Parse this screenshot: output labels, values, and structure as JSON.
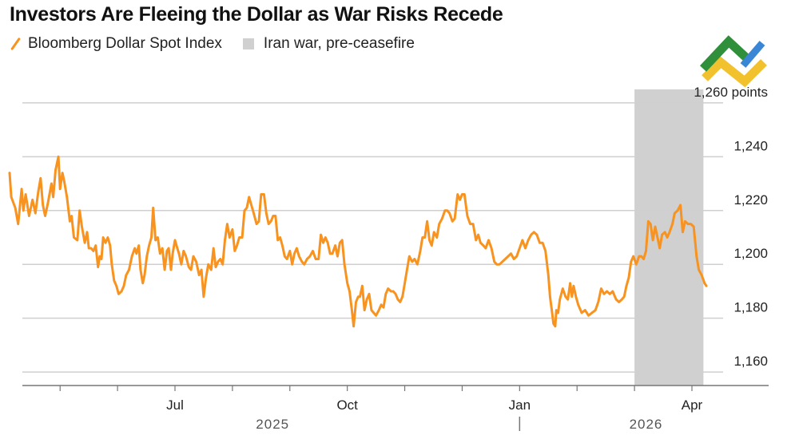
{
  "title": "Investors Are Fleeing the Dollar as War Risks Recede",
  "legend": {
    "series_label": "Bloomberg Dollar Spot Index",
    "shade_label": "Iran war, pre-ceasefire"
  },
  "colors": {
    "line": "#f7931e",
    "shade": "#d0d0d0",
    "grid": "#cfcfcf",
    "axis": "#777777"
  },
  "chart_data": {
    "type": "line",
    "title": "Investors Are Fleeing the Dollar as War Risks Recede",
    "xlabel": "",
    "ylabel": "points",
    "ylim": [
      1155,
      1265
    ],
    "y_ticks": [
      {
        "value": 1260,
        "label": "1,260 points"
      },
      {
        "value": 1240,
        "label": "1,240"
      },
      {
        "value": 1220,
        "label": "1,220"
      },
      {
        "value": 1200,
        "label": "1,200"
      },
      {
        "value": 1180,
        "label": "1,180"
      },
      {
        "value": 1160,
        "label": "1,160"
      }
    ],
    "x_ticks": [
      {
        "month": 5,
        "label": ""
      },
      {
        "month": 6,
        "label": ""
      },
      {
        "month": 7,
        "label": "Jul"
      },
      {
        "month": 8,
        "label": ""
      },
      {
        "month": 9,
        "label": ""
      },
      {
        "month": 10,
        "label": "Oct"
      },
      {
        "month": 11,
        "label": ""
      },
      {
        "month": 12,
        "label": ""
      },
      {
        "month": 13,
        "label": "Jan"
      },
      {
        "month": 14,
        "label": ""
      },
      {
        "month": 15,
        "label": ""
      },
      {
        "month": 16,
        "label": "Apr"
      }
    ],
    "year_labels": [
      {
        "month": 8.7,
        "label": "2025"
      },
      {
        "month": 15.2,
        "label": "2026"
      }
    ],
    "year_separator_month": 13.0,
    "xlim": [
      4.0,
      17.3
    ],
    "shaded_region": {
      "start_month": 15.0,
      "end_month": 16.2,
      "label": "Iran war, pre-ceasefire"
    },
    "series": [
      {
        "name": "Bloomberg Dollar Spot Index",
        "points": [
          [
            4.12,
            1234
          ],
          [
            4.15,
            1225
          ],
          [
            4.22,
            1221
          ],
          [
            4.27,
            1215
          ],
          [
            4.33,
            1228
          ],
          [
            4.36,
            1220
          ],
          [
            4.4,
            1226
          ],
          [
            4.46,
            1218
          ],
          [
            4.52,
            1224
          ],
          [
            4.57,
            1219
          ],
          [
            4.62,
            1227
          ],
          [
            4.66,
            1232
          ],
          [
            4.7,
            1222
          ],
          [
            4.74,
            1218
          ],
          [
            4.79,
            1223
          ],
          [
            4.85,
            1230
          ],
          [
            4.88,
            1225
          ],
          [
            4.92,
            1235
          ],
          [
            4.97,
            1240
          ],
          [
            5.0,
            1228
          ],
          [
            5.04,
            1234
          ],
          [
            5.07,
            1231
          ],
          [
            5.12,
            1225
          ],
          [
            5.17,
            1216
          ],
          [
            5.2,
            1218
          ],
          [
            5.24,
            1210
          ],
          [
            5.3,
            1209
          ],
          [
            5.34,
            1220
          ],
          [
            5.38,
            1214
          ],
          [
            5.43,
            1208
          ],
          [
            5.47,
            1212
          ],
          [
            5.5,
            1206
          ],
          [
            5.54,
            1206
          ],
          [
            5.58,
            1205
          ],
          [
            5.62,
            1207
          ],
          [
            5.66,
            1199
          ],
          [
            5.69,
            1203
          ],
          [
            5.72,
            1202
          ],
          [
            5.75,
            1210
          ],
          [
            5.79,
            1208
          ],
          [
            5.83,
            1210
          ],
          [
            5.87,
            1207
          ],
          [
            5.9,
            1200
          ],
          [
            5.94,
            1194
          ],
          [
            5.98,
            1192
          ],
          [
            6.02,
            1189
          ],
          [
            6.07,
            1190
          ],
          [
            6.11,
            1192
          ],
          [
            6.15,
            1196
          ],
          [
            6.2,
            1198
          ],
          [
            6.25,
            1203
          ],
          [
            6.3,
            1206
          ],
          [
            6.33,
            1204
          ],
          [
            6.37,
            1207
          ],
          [
            6.4,
            1198
          ],
          [
            6.44,
            1193
          ],
          [
            6.47,
            1196
          ],
          [
            6.51,
            1203
          ],
          [
            6.55,
            1207
          ],
          [
            6.59,
            1210
          ],
          [
            6.62,
            1221
          ],
          [
            6.66,
            1209
          ],
          [
            6.7,
            1210
          ],
          [
            6.74,
            1204
          ],
          [
            6.78,
            1206
          ],
          [
            6.82,
            1198
          ],
          [
            6.86,
            1205
          ],
          [
            6.89,
            1206
          ],
          [
            6.93,
            1198
          ],
          [
            6.96,
            1204
          ],
          [
            7.0,
            1209
          ],
          [
            7.04,
            1206
          ],
          [
            7.07,
            1204
          ],
          [
            7.11,
            1200
          ],
          [
            7.15,
            1205
          ],
          [
            7.19,
            1203
          ],
          [
            7.24,
            1199
          ],
          [
            7.28,
            1198
          ],
          [
            7.32,
            1203
          ],
          [
            7.37,
            1201
          ],
          [
            7.42,
            1196
          ],
          [
            7.46,
            1198
          ],
          [
            7.5,
            1188
          ],
          [
            7.54,
            1195
          ],
          [
            7.58,
            1200
          ],
          [
            7.63,
            1198
          ],
          [
            7.67,
            1206
          ],
          [
            7.71,
            1199
          ],
          [
            7.75,
            1201
          ],
          [
            7.79,
            1202
          ],
          [
            7.83,
            1200
          ],
          [
            7.87,
            1209
          ],
          [
            7.91,
            1215
          ],
          [
            7.95,
            1210
          ],
          [
            8.0,
            1213
          ],
          [
            8.04,
            1205
          ],
          [
            8.08,
            1207
          ],
          [
            8.12,
            1210
          ],
          [
            8.17,
            1210
          ],
          [
            8.21,
            1220
          ],
          [
            8.25,
            1221
          ],
          [
            8.29,
            1225
          ],
          [
            8.33,
            1222
          ],
          [
            8.37,
            1219
          ],
          [
            8.42,
            1215
          ],
          [
            8.46,
            1216
          ],
          [
            8.5,
            1226
          ],
          [
            8.55,
            1226
          ],
          [
            8.59,
            1219
          ],
          [
            8.63,
            1215
          ],
          [
            8.67,
            1216
          ],
          [
            8.71,
            1218
          ],
          [
            8.75,
            1218
          ],
          [
            8.79,
            1209
          ],
          [
            8.83,
            1210
          ],
          [
            8.87,
            1207
          ],
          [
            8.91,
            1203
          ],
          [
            8.95,
            1202
          ],
          [
            9.0,
            1205
          ],
          [
            9.04,
            1200
          ],
          [
            9.08,
            1204
          ],
          [
            9.12,
            1206
          ],
          [
            9.16,
            1203
          ],
          [
            9.21,
            1201
          ],
          [
            9.25,
            1200
          ],
          [
            9.3,
            1202
          ],
          [
            9.35,
            1203
          ],
          [
            9.4,
            1205
          ],
          [
            9.45,
            1202
          ],
          [
            9.5,
            1202
          ],
          [
            9.54,
            1211
          ],
          [
            9.58,
            1208
          ],
          [
            9.62,
            1210
          ],
          [
            9.66,
            1208
          ],
          [
            9.7,
            1204
          ],
          [
            9.74,
            1204
          ],
          [
            9.79,
            1207
          ],
          [
            9.83,
            1203
          ],
          [
            9.87,
            1208
          ],
          [
            9.91,
            1209
          ],
          [
            9.95,
            1200
          ],
          [
            10.0,
            1193
          ],
          [
            10.04,
            1190
          ],
          [
            10.08,
            1183
          ],
          [
            10.11,
            1177
          ],
          [
            10.15,
            1186
          ],
          [
            10.19,
            1188
          ],
          [
            10.22,
            1188
          ],
          [
            10.26,
            1192
          ],
          [
            10.3,
            1183
          ],
          [
            10.34,
            1187
          ],
          [
            10.38,
            1189
          ],
          [
            10.42,
            1183
          ],
          [
            10.46,
            1182
          ],
          [
            10.5,
            1181
          ],
          [
            10.55,
            1183
          ],
          [
            10.59,
            1185
          ],
          [
            10.63,
            1184
          ],
          [
            10.67,
            1189
          ],
          [
            10.71,
            1191
          ],
          [
            10.76,
            1190
          ],
          [
            10.8,
            1190
          ],
          [
            10.84,
            1189
          ],
          [
            10.88,
            1187
          ],
          [
            10.92,
            1186
          ],
          [
            10.96,
            1188
          ],
          [
            11.0,
            1193
          ],
          [
            11.04,
            1198
          ],
          [
            11.08,
            1203
          ],
          [
            11.13,
            1201
          ],
          [
            11.17,
            1202
          ],
          [
            11.22,
            1200
          ],
          [
            11.27,
            1205
          ],
          [
            11.31,
            1210
          ],
          [
            11.35,
            1210
          ],
          [
            11.39,
            1216
          ],
          [
            11.43,
            1209
          ],
          [
            11.47,
            1207
          ],
          [
            11.51,
            1212
          ],
          [
            11.56,
            1210
          ],
          [
            11.6,
            1215
          ],
          [
            11.65,
            1217
          ],
          [
            11.7,
            1220
          ],
          [
            11.74,
            1220
          ],
          [
            11.78,
            1219
          ],
          [
            11.83,
            1216
          ],
          [
            11.87,
            1217
          ],
          [
            11.92,
            1226
          ],
          [
            11.96,
            1224
          ],
          [
            12.0,
            1226
          ],
          [
            12.04,
            1226
          ],
          [
            12.09,
            1218
          ],
          [
            12.14,
            1215
          ],
          [
            12.19,
            1215
          ],
          [
            12.24,
            1209
          ],
          [
            12.28,
            1211
          ],
          [
            12.32,
            1208
          ],
          [
            12.37,
            1207
          ],
          [
            12.41,
            1206
          ],
          [
            12.46,
            1209
          ],
          [
            12.51,
            1206
          ],
          [
            12.56,
            1201
          ],
          [
            12.6,
            1200
          ],
          [
            12.65,
            1200
          ],
          [
            12.7,
            1201
          ],
          [
            12.75,
            1202
          ],
          [
            12.8,
            1203
          ],
          [
            12.85,
            1204
          ],
          [
            12.9,
            1202
          ],
          [
            12.95,
            1203
          ],
          [
            13.0,
            1206
          ],
          [
            13.05,
            1209
          ],
          [
            13.1,
            1206
          ],
          [
            13.15,
            1209
          ],
          [
            13.2,
            1211
          ],
          [
            13.25,
            1212
          ],
          [
            13.3,
            1211
          ],
          [
            13.35,
            1208
          ],
          [
            13.4,
            1208
          ],
          [
            13.45,
            1205
          ],
          [
            13.5,
            1196
          ],
          [
            13.53,
            1188
          ],
          [
            13.56,
            1183
          ],
          [
            13.59,
            1178
          ],
          [
            13.62,
            1177
          ],
          [
            13.64,
            1183
          ],
          [
            13.67,
            1182
          ],
          [
            13.7,
            1187
          ],
          [
            13.75,
            1191
          ],
          [
            13.8,
            1188
          ],
          [
            13.84,
            1187
          ],
          [
            13.88,
            1193
          ],
          [
            13.91,
            1188
          ],
          [
            13.94,
            1192
          ],
          [
            13.98,
            1188
          ],
          [
            14.02,
            1185
          ],
          [
            14.08,
            1182
          ],
          [
            14.14,
            1183
          ],
          [
            14.2,
            1181
          ],
          [
            14.26,
            1182
          ],
          [
            14.32,
            1183
          ],
          [
            14.37,
            1186
          ],
          [
            14.42,
            1191
          ],
          [
            14.47,
            1189
          ],
          [
            14.52,
            1190
          ],
          [
            14.57,
            1189
          ],
          [
            14.62,
            1190
          ],
          [
            14.68,
            1187
          ],
          [
            14.73,
            1186
          ],
          [
            14.78,
            1187
          ],
          [
            14.82,
            1188
          ],
          [
            14.86,
            1192
          ],
          [
            14.9,
            1195
          ],
          [
            14.94,
            1201
          ],
          [
            14.98,
            1203
          ],
          [
            15.03,
            1200
          ],
          [
            15.08,
            1203
          ],
          [
            15.12,
            1203
          ],
          [
            15.16,
            1202
          ],
          [
            15.2,
            1205
          ],
          [
            15.24,
            1216
          ],
          [
            15.28,
            1215
          ],
          [
            15.32,
            1209
          ],
          [
            15.36,
            1214
          ],
          [
            15.4,
            1210
          ],
          [
            15.44,
            1206
          ],
          [
            15.48,
            1211
          ],
          [
            15.53,
            1212
          ],
          [
            15.57,
            1210
          ],
          [
            15.61,
            1212
          ],
          [
            15.66,
            1215
          ],
          [
            15.7,
            1219
          ],
          [
            15.75,
            1220
          ],
          [
            15.8,
            1222
          ],
          [
            15.84,
            1212
          ],
          [
            15.88,
            1216
          ],
          [
            15.93,
            1215
          ],
          [
            15.98,
            1215
          ],
          [
            16.03,
            1214
          ],
          [
            16.08,
            1203
          ],
          [
            16.12,
            1198
          ],
          [
            16.17,
            1196
          ],
          [
            16.22,
            1193
          ],
          [
            16.25,
            1192
          ]
        ]
      }
    ]
  }
}
